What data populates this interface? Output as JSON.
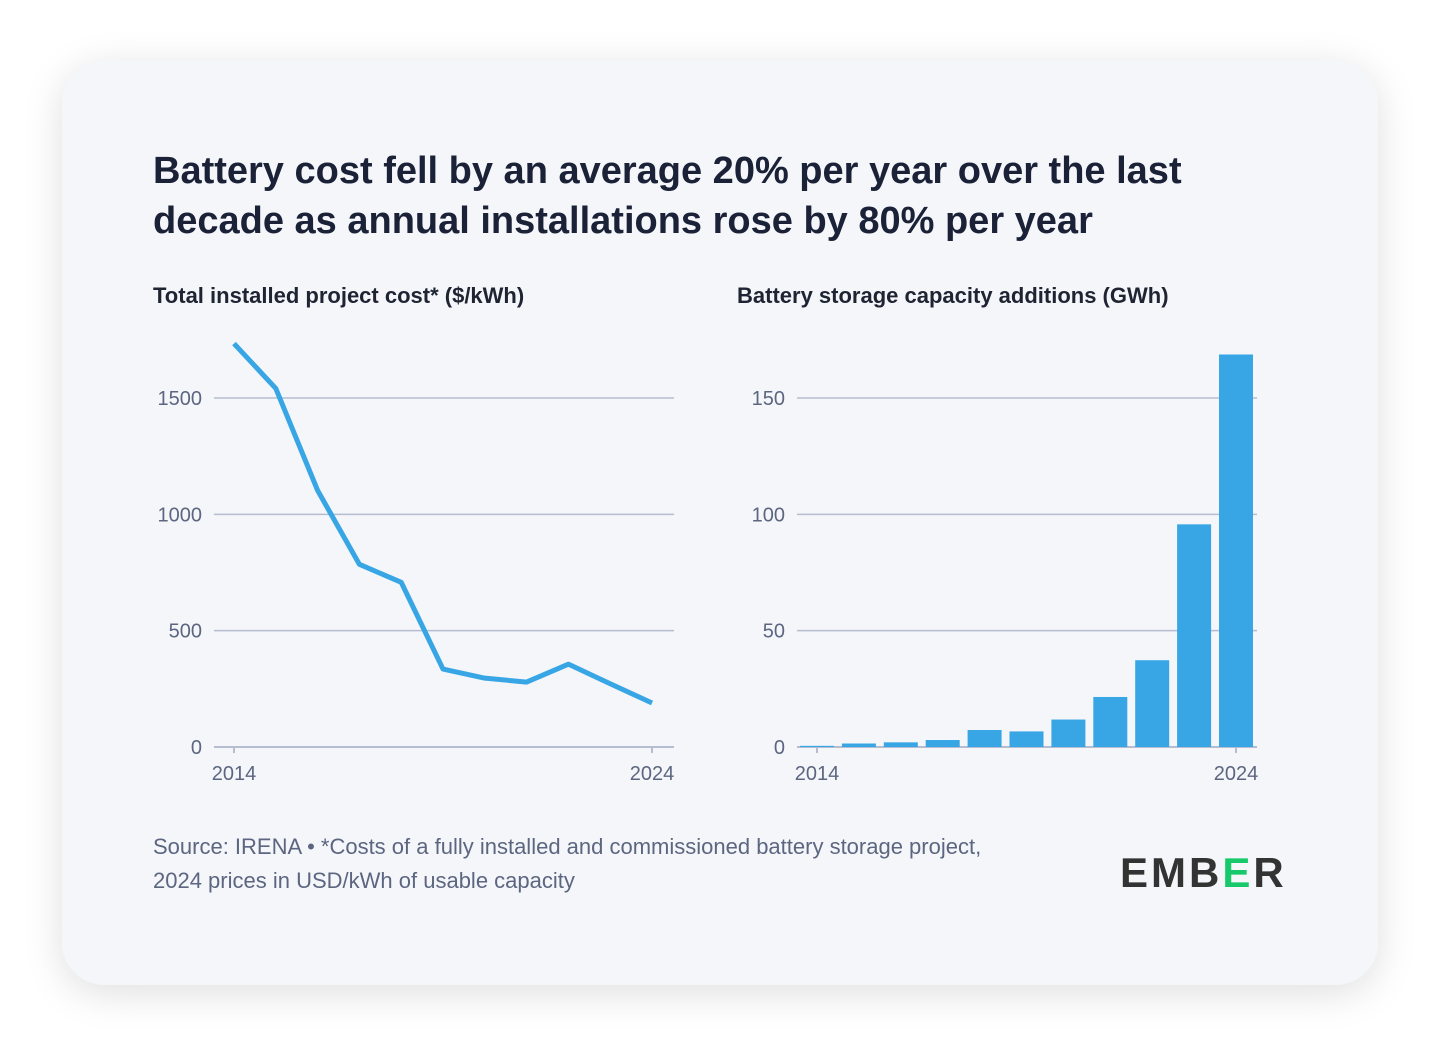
{
  "title": "Battery cost fell by an average 20% per year over the last decade as annual installations rose by 80% per year",
  "source": "Source: IRENA • *Costs of a fully installed and commissioned battery storage project, 2024 prices in USD/kWh of usable capacity",
  "logo": {
    "prefix": "EMB",
    "accent": "E",
    "suffix": "R",
    "accent_color": "#17c96b"
  },
  "colors": {
    "series": "#38a6e5",
    "grid": "#b6bdd0"
  },
  "chart_data": [
    {
      "type": "line",
      "title": "Total installed project cost* ($/kWh)",
      "x": [
        2014,
        2015,
        2016,
        2017,
        2018,
        2019,
        2020,
        2021,
        2022,
        2023,
        2024
      ],
      "values": [
        1734,
        1541,
        1103,
        785,
        708,
        335,
        296,
        279,
        356,
        272,
        189
      ],
      "xticks": [
        "2014",
        "2024"
      ],
      "yticks": [
        0,
        500,
        1000,
        1500
      ],
      "ylim": [
        0,
        1800
      ],
      "grid": true
    },
    {
      "type": "bar",
      "title": "Battery storage capacity additions (GWh)",
      "x": [
        2014,
        2015,
        2016,
        2017,
        2018,
        2019,
        2020,
        2021,
        2022,
        2023,
        2024
      ],
      "values": [
        0.5,
        1.5,
        2,
        3,
        7.3,
        6.7,
        11.8,
        21.5,
        37.3,
        95.7,
        168.7
      ],
      "xticks": [
        "2014",
        "2024"
      ],
      "yticks": [
        0,
        50,
        100,
        150
      ],
      "ylim": [
        0,
        180
      ],
      "grid": true
    }
  ]
}
